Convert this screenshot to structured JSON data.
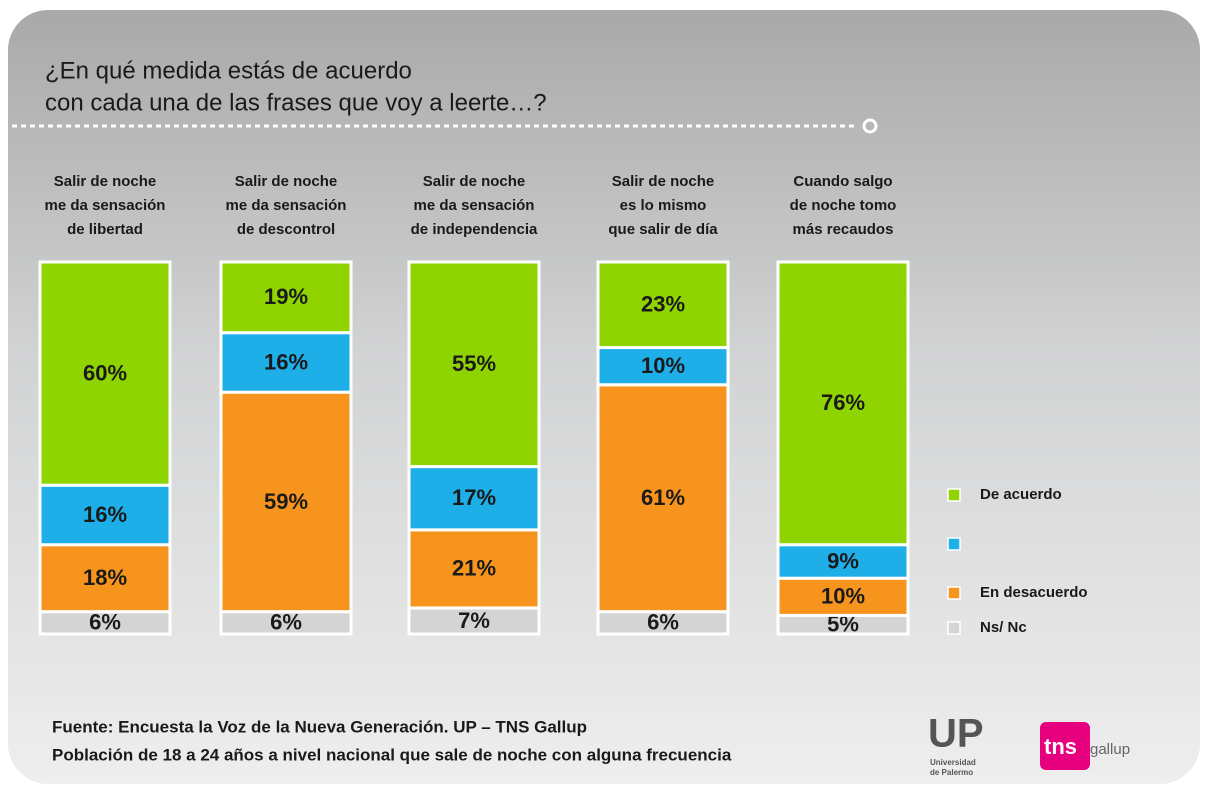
{
  "chart_data": {
    "type": "stacked_bar",
    "title": [
      "¿En qué medida estás de acuerdo",
      "con cada una de las frases que voy a leerte…?"
    ],
    "categories": [
      [
        "Salir de noche",
        "me da sensación",
        "de libertad"
      ],
      [
        "Salir de noche",
        "me da sensación",
        "de descontrol"
      ],
      [
        "Salir de noche",
        "me da sensación",
        "de independencia"
      ],
      [
        "Salir de noche",
        "es lo mismo",
        "que salir de día"
      ],
      [
        "Cuando salgo",
        "de noche tomo",
        "más recaudos"
      ]
    ],
    "ylim": [
      0,
      100
    ],
    "series": [
      {
        "name": "De acuerdo",
        "color": "#8fd400",
        "values": [
          60,
          19,
          55,
          23,
          76
        ],
        "value_labels": [
          "60%",
          "19%",
          "55%",
          "23%",
          "76%"
        ]
      },
      {
        "color": "#1eaee8",
        "values": [
          16,
          16,
          17,
          10,
          9
        ],
        "value_labels": [
          "16%",
          "16%",
          "17%",
          "10%",
          "9%"
        ]
      },
      {
        "name": "En desacuerdo",
        "color": "#f7941d",
        "values": [
          18,
          59,
          21,
          61,
          10
        ],
        "value_labels": [
          "18%",
          "59%",
          "21%",
          "61%",
          "10%"
        ]
      },
      {
        "name": "Ns/ Nc",
        "color": "#d4d4d4",
        "values": [
          6,
          6,
          7,
          6,
          5
        ],
        "value_labels": [
          "6%",
          "6%",
          "7%",
          "6%",
          "5%"
        ]
      }
    ]
  },
  "footer": [
    "Fuente: Encuesta la Voz de la Nueva Generación. UP – TNS Gallup",
    "Población de 18 a 24 años a nivel nacional que sale de noche con alguna frecuencia"
  ],
  "logos": {
    "up": "UP",
    "up_sub": [
      "Universidad",
      "de Palermo"
    ],
    "tns": "tns",
    "gallup": "gallup"
  }
}
